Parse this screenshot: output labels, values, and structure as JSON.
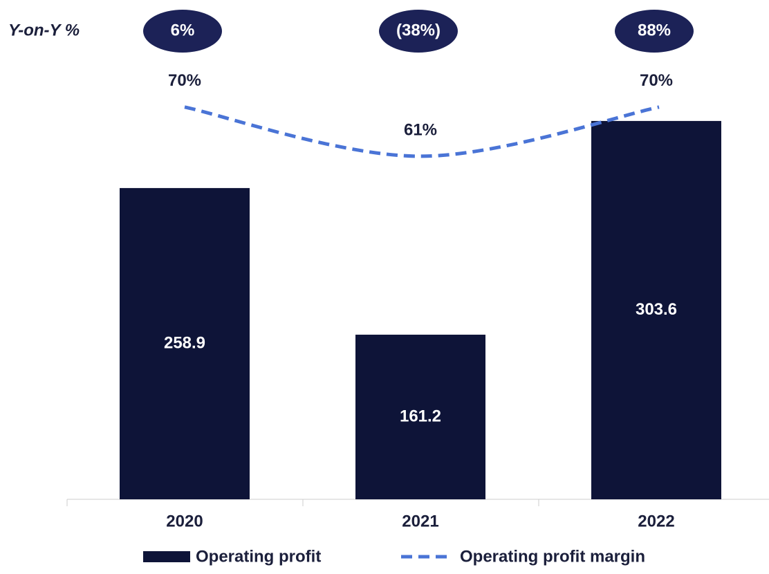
{
  "chart_data": {
    "type": "bar",
    "categories": [
      "2020",
      "2021",
      "2022"
    ],
    "series": [
      {
        "name": "Operating profit",
        "type": "bar",
        "color": "#0e1438",
        "values": [
          258.9,
          161.2,
          303.6
        ]
      },
      {
        "name": "Operating profit margin",
        "type": "line",
        "axis": "y2",
        "color": "#4a74d6",
        "dashed": true,
        "values": [
          70,
          61,
          70
        ],
        "value_labels": [
          "70%",
          "61%",
          "70%"
        ]
      }
    ],
    "ylim": [
      51.5,
      384.2
    ],
    "y2lim": [
      -1.8,
      89.6
    ],
    "yoy": {
      "label": "Y-on-Y %",
      "color": "#1c2257",
      "values": [
        6,
        -38,
        88
      ],
      "value_labels": [
        "6%",
        "(38%)",
        "88%"
      ]
    },
    "legend": "bottom"
  }
}
